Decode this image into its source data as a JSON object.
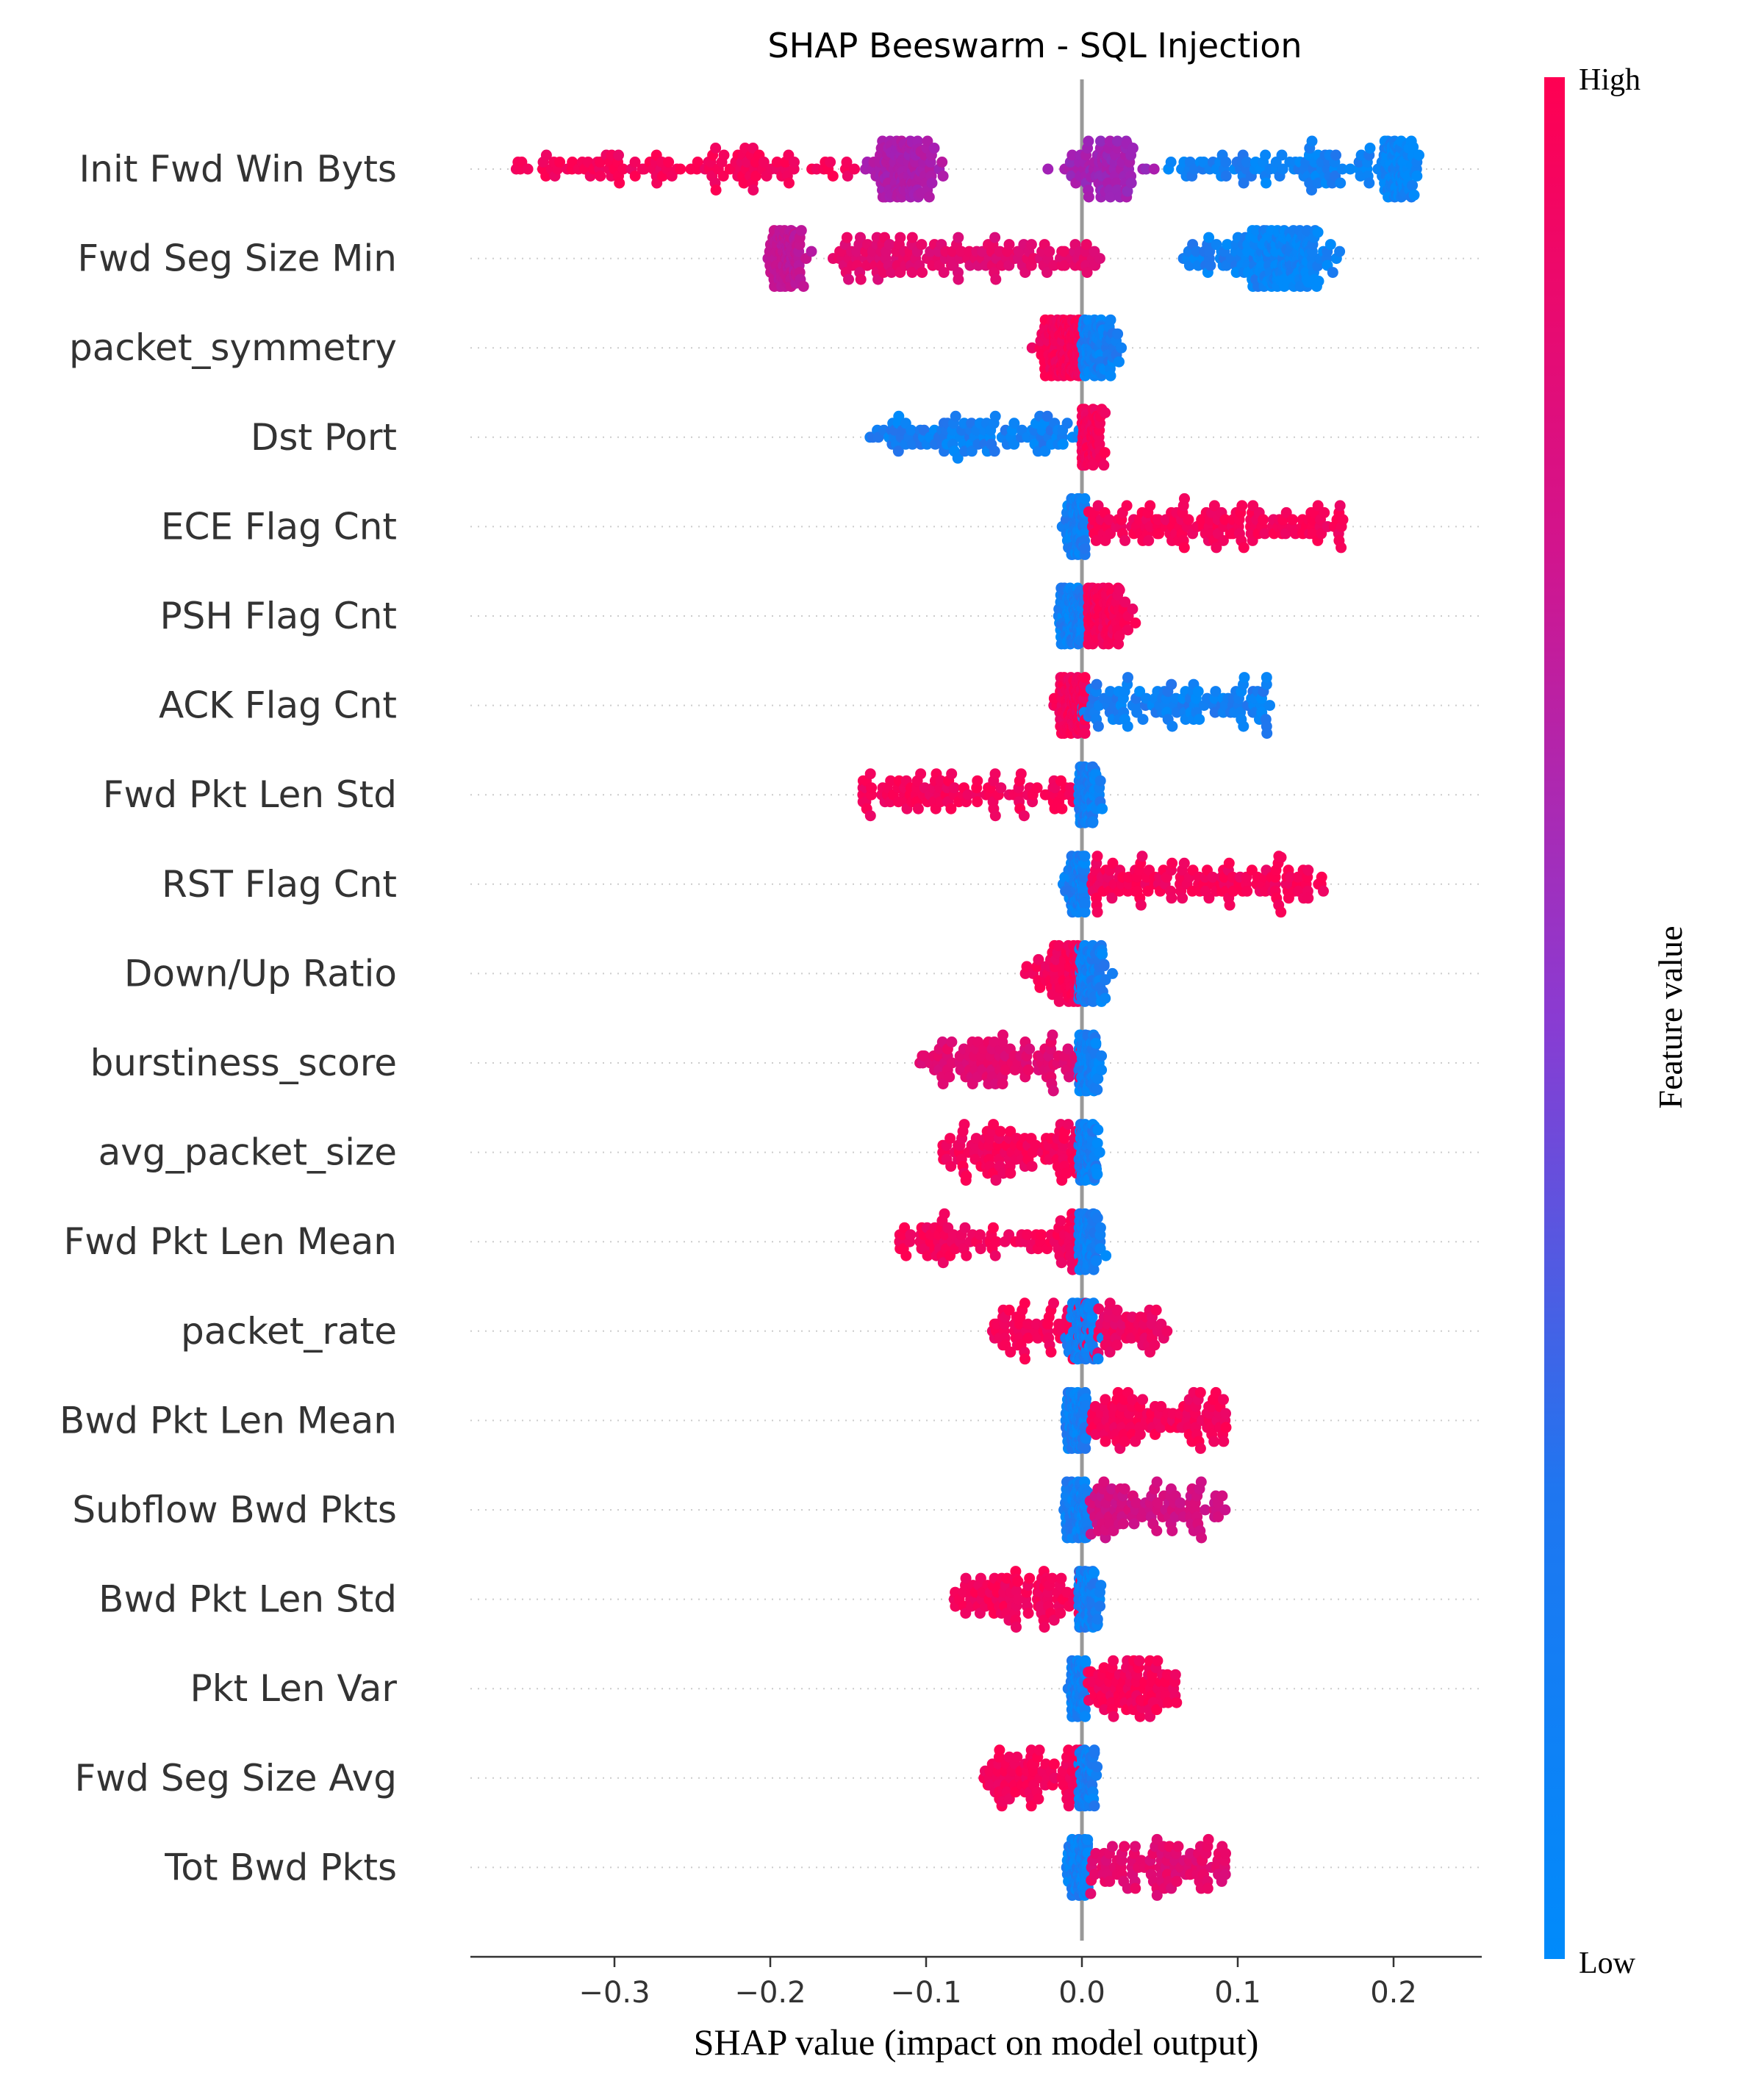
{
  "chart_data": {
    "type": "scatter",
    "subtype": "beeswarm",
    "title": "SHAP Beeswarm - SQL Injection",
    "xlabel": "SHAP value (impact on model output)",
    "xlim": [
      -0.392,
      0.258
    ],
    "xticks": [
      {
        "value": -0.3,
        "label": "−0.3"
      },
      {
        "value": -0.2,
        "label": "−0.2"
      },
      {
        "value": -0.1,
        "label": "−0.1"
      },
      {
        "value": 0.0,
        "label": "0.0"
      },
      {
        "value": 0.1,
        "label": "0.1"
      },
      {
        "value": 0.2,
        "label": "0.2"
      }
    ],
    "colorbar": {
      "label": "Feature value",
      "high_label": "High",
      "low_label": "Low",
      "colors": {
        "high": "#ff0052",
        "mid": "#a51fb4",
        "low": "#008bfb"
      }
    },
    "features": [
      {
        "name": "Init Fwd Win Byts",
        "segments": [
          {
            "from": -0.365,
            "to": -0.145,
            "c": 0.95,
            "n": 120
          },
          {
            "from": -0.152,
            "to": -0.082,
            "c": 0.55,
            "n": 130,
            "peak": -0.114,
            "w": 0.015
          },
          {
            "from": -0.035,
            "to": 0.06,
            "c": 0.5,
            "n": 90,
            "peak": 0.015,
            "w": 0.018
          },
          {
            "from": 0.055,
            "to": 0.185,
            "c": 0.05,
            "n": 90
          },
          {
            "from": 0.18,
            "to": 0.228,
            "c": 0.02,
            "n": 130,
            "peak": 0.203,
            "w": 0.008
          }
        ]
      },
      {
        "name": "Fwd Seg Size Min",
        "segments": [
          {
            "from": -0.205,
            "to": -0.155,
            "c": 0.65,
            "n": 130,
            "peak": -0.19,
            "w": 0.008
          },
          {
            "from": -0.16,
            "to": 0.012,
            "c": 0.85,
            "n": 150
          },
          {
            "from": 0.065,
            "to": 0.115,
            "c": 0.05,
            "n": 40
          },
          {
            "from": 0.09,
            "to": 0.187,
            "c": 0.02,
            "n": 180,
            "peak": 0.132,
            "w": 0.018
          }
        ]
      },
      {
        "name": "packet_symmetry",
        "segments": [
          {
            "from": -0.068,
            "to": 0.0,
            "c": 0.95,
            "n": 170,
            "peak": -0.01,
            "w": 0.012
          },
          {
            "from": 0.0,
            "to": 0.123,
            "c": 0.05,
            "n": 120,
            "peak": 0.005,
            "w": 0.015
          }
        ]
      },
      {
        "name": "Dst Port",
        "segments": [
          {
            "from": -0.138,
            "to": 0.0,
            "c": 0.05,
            "n": 110
          },
          {
            "from": 0.0,
            "to": 0.063,
            "c": 0.95,
            "n": 160,
            "peak": 0.003,
            "w": 0.008
          }
        ]
      },
      {
        "name": "ECE Flag Cnt",
        "segments": [
          {
            "from": -0.037,
            "to": 0.002,
            "c": 0.05,
            "n": 120,
            "peak": -0.002,
            "w": 0.006
          },
          {
            "from": 0.004,
            "to": 0.168,
            "c": 0.95,
            "n": 150
          }
        ]
      },
      {
        "name": "PSH Flag Cnt",
        "segments": [
          {
            "from": -0.05,
            "to": 0.002,
            "c": 0.05,
            "n": 150,
            "peak": -0.004,
            "w": 0.008
          },
          {
            "from": 0.004,
            "to": 0.11,
            "c": 0.95,
            "n": 140,
            "peak": 0.01,
            "w": 0.015
          }
        ]
      },
      {
        "name": "ACK Flag Cnt",
        "segments": [
          {
            "from": -0.05,
            "to": 0.002,
            "c": 0.95,
            "n": 150,
            "peak": -0.004,
            "w": 0.008
          },
          {
            "from": 0.0,
            "to": 0.122,
            "c": 0.05,
            "n": 120
          }
        ]
      },
      {
        "name": "Fwd Pkt Len Std",
        "segments": [
          {
            "from": -0.142,
            "to": 0.0,
            "c": 0.95,
            "n": 110
          },
          {
            "from": -0.002,
            "to": 0.033,
            "c": 0.05,
            "n": 120,
            "peak": 0.003,
            "w": 0.006
          }
        ]
      },
      {
        "name": "RST Flag Cnt",
        "segments": [
          {
            "from": -0.03,
            "to": 0.002,
            "c": 0.05,
            "n": 130,
            "peak": -0.001,
            "w": 0.006
          },
          {
            "from": 0.005,
            "to": 0.155,
            "c": 0.95,
            "n": 140
          }
        ]
      },
      {
        "name": "Down/Up Ratio",
        "segments": [
          {
            "from": -0.14,
            "to": 0.0,
            "c": 0.95,
            "n": 100,
            "peak": -0.005,
            "w": 0.02
          },
          {
            "from": -0.002,
            "to": 0.038,
            "c": 0.05,
            "n": 130,
            "peak": 0.004,
            "w": 0.008
          }
        ]
      },
      {
        "name": "burstiness_score",
        "segments": [
          {
            "from": -0.108,
            "to": 0.0,
            "c": 0.85,
            "n": 110
          },
          {
            "from": -0.002,
            "to": 0.025,
            "c": 0.05,
            "n": 120,
            "peak": 0.003,
            "w": 0.006
          }
        ]
      },
      {
        "name": "avg_packet_size",
        "segments": [
          {
            "from": -0.09,
            "to": 0.0,
            "c": 0.95,
            "n": 110
          },
          {
            "from": -0.002,
            "to": 0.022,
            "c": 0.05,
            "n": 120,
            "peak": 0.003,
            "w": 0.006
          }
        ]
      },
      {
        "name": "Fwd Pkt Len Mean",
        "segments": [
          {
            "from": -0.118,
            "to": 0.0,
            "c": 0.95,
            "n": 100
          },
          {
            "from": -0.002,
            "to": 0.024,
            "c": 0.05,
            "n": 120,
            "peak": 0.003,
            "w": 0.006
          }
        ]
      },
      {
        "name": "packet_rate",
        "segments": [
          {
            "from": -0.058,
            "to": 0.0,
            "c": 0.95,
            "n": 60
          },
          {
            "from": -0.02,
            "to": 0.02,
            "c": 0.05,
            "n": 140,
            "peak": 0.0,
            "w": 0.006
          },
          {
            "from": 0.0,
            "to": 0.055,
            "c": 0.9,
            "n": 60
          }
        ]
      },
      {
        "name": "Bwd Pkt Len Mean",
        "segments": [
          {
            "from": -0.024,
            "to": 0.003,
            "c": 0.05,
            "n": 130,
            "peak": -0.002,
            "w": 0.006
          },
          {
            "from": 0.005,
            "to": 0.093,
            "c": 0.95,
            "n": 110
          }
        ]
      },
      {
        "name": "Subflow Bwd Pkts",
        "segments": [
          {
            "from": -0.032,
            "to": 0.004,
            "c": 0.05,
            "n": 130,
            "peak": -0.001,
            "w": 0.007
          },
          {
            "from": 0.005,
            "to": 0.092,
            "c": 0.75,
            "n": 100
          }
        ]
      },
      {
        "name": "Bwd Pkt Len Std",
        "segments": [
          {
            "from": -0.082,
            "to": 0.0,
            "c": 0.95,
            "n": 100
          },
          {
            "from": -0.002,
            "to": 0.024,
            "c": 0.05,
            "n": 120,
            "peak": 0.003,
            "w": 0.006
          }
        ]
      },
      {
        "name": "Pkt Len Var",
        "segments": [
          {
            "from": -0.017,
            "to": 0.003,
            "c": 0.05,
            "n": 130,
            "peak": -0.002,
            "w": 0.004
          },
          {
            "from": 0.004,
            "to": 0.061,
            "c": 0.95,
            "n": 90
          }
        ]
      },
      {
        "name": "Fwd Seg Size Avg",
        "segments": [
          {
            "from": -0.063,
            "to": 0.0,
            "c": 0.95,
            "n": 90
          },
          {
            "from": -0.002,
            "to": 0.015,
            "c": 0.05,
            "n": 120,
            "peak": 0.003,
            "w": 0.004
          }
        ]
      },
      {
        "name": "Tot Bwd Pkts",
        "segments": [
          {
            "from": -0.035,
            "to": 0.004,
            "c": 0.05,
            "n": 130,
            "peak": -0.001,
            "w": 0.006
          },
          {
            "from": 0.004,
            "to": 0.093,
            "c": 0.85,
            "n": 100
          }
        ]
      }
    ]
  }
}
